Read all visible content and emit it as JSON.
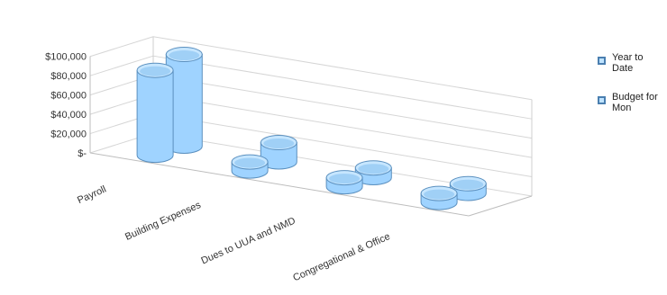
{
  "chart_data": {
    "type": "bar",
    "style": "3d-cylinder",
    "categories": [
      "Payroll",
      "Building Expenses",
      "Dues to UUA and NMD",
      "Congregational & Office"
    ],
    "series": [
      {
        "name": "Year to Date",
        "values": [
          88000,
          8000,
          3000,
          7000
        ]
      },
      {
        "name": "Budget for Mon",
        "values": [
          95000,
          20000,
          10000,
          10000
        ]
      }
    ],
    "y_ticks": [
      "$-",
      "$20,000",
      "$40,000",
      "$60,000",
      "$80,000",
      "$100,000"
    ],
    "ylim": [
      0,
      110000
    ],
    "grid": true,
    "legend": "right",
    "colors": {
      "cylinder": "#9fd3ff",
      "cylinder_dark": "#5aa6e6",
      "edge": "#5b90bf"
    }
  }
}
